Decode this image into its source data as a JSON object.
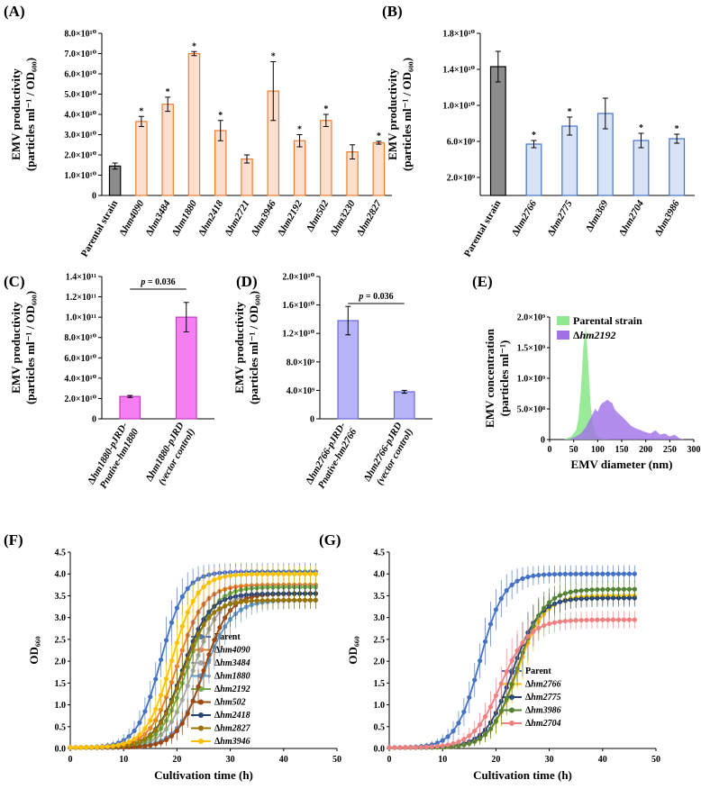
{
  "chart_data": [
    {
      "id": "A",
      "type": "bar",
      "panel_label": "(A)",
      "ylabel_line1": "EMV productivity",
      "ylabel_line2": "(particles ml⁻¹ / OD₆₀₀)",
      "ylim": [
        0,
        80000000000.0
      ],
      "yticks": [
        "0",
        "1.0×10¹⁰",
        "2.0×10¹⁰",
        "3.0×10¹⁰",
        "4.0×10¹⁰",
        "5.0×10¹⁰",
        "6.0×10¹⁰",
        "7.0×10¹⁰",
        "8.0×10¹⁰"
      ],
      "categories": [
        "Parental strain",
        "Δhm4090",
        "Δhm3484",
        "Δhm1880",
        "Δhm2418",
        "Δhm2721",
        "Δhm3946",
        "Δhm2192",
        "Δhm502",
        "Δhm3230",
        "Δhm2827"
      ],
      "values": [
        14500000000.0,
        36500000000.0,
        45000000000.0,
        70000000000.0,
        32000000000.0,
        18000000000.0,
        51500000000.0,
        27000000000.0,
        37000000000.0,
        21500000000.0,
        26000000000.0
      ],
      "errors": [
        1500000000.0,
        2500000000.0,
        3500000000.0,
        1000000000.0,
        5000000000.0,
        2000000000.0,
        14500000000.0,
        3000000000.0,
        3000000000.0,
        3500000000.0,
        700000000.0
      ],
      "significant": [
        false,
        true,
        true,
        true,
        true,
        false,
        true,
        true,
        true,
        false,
        true
      ],
      "star": "*"
    },
    {
      "id": "B",
      "type": "bar",
      "panel_label": "(B)",
      "ylabel_line1": "EMV productivity",
      "ylabel_line2": "(particles ml⁻¹ / OD₆₀₀)",
      "ylim": [
        0,
        18000000000.0
      ],
      "yticks": [
        "2.0×10⁹",
        "6.0×10⁹",
        "1.0×10¹⁰",
        "1.4×10¹⁰",
        "1.8×10¹⁰"
      ],
      "ytick_values": [
        2000000000.0,
        6000000000.0,
        10000000000.0,
        14000000000.0,
        18000000000.0
      ],
      "categories": [
        "Parental strain",
        "Δhm2766",
        "Δhm2775",
        "Δhm369",
        "Δhm2704",
        "Δhm3986"
      ],
      "values": [
        14300000000.0,
        5700000000.0,
        7700000000.0,
        9100000000.0,
        6100000000.0,
        6300000000.0
      ],
      "errors": [
        1700000000.0,
        400000000.0,
        1000000000.0,
        1700000000.0,
        800000000.0,
        500000000.0
      ],
      "significant": [
        false,
        true,
        true,
        false,
        true,
        true
      ],
      "star": "*"
    },
    {
      "id": "C",
      "type": "bar",
      "panel_label": "(C)",
      "ylabel_line1": "EMV productivity",
      "ylabel_line2": "(particles ml⁻¹ / OD₆₀₀)",
      "ylim": [
        0,
        140000000000.0
      ],
      "yticks": [
        "0",
        "2.0×10¹⁰",
        "4.0×10¹⁰",
        "6.0×10¹⁰",
        "8.0×10¹⁰",
        "1.0×10¹¹",
        "1.2×10¹¹",
        "1.4×10¹¹"
      ],
      "categories": [
        "Δhm1880-pJRD-Pnative-hm1880",
        "Δhm1880-pJRD (vector control)"
      ],
      "cat_lines": [
        [
          "Δhm1880-pJRD-",
          "Pnative-hm1880"
        ],
        [
          "Δhm1880-pJRD",
          "(vector control)"
        ]
      ],
      "values": [
        22000000000.0,
        100000000000.0
      ],
      "errors": [
        1000000000.0,
        14500000000.0
      ],
      "pvalue": "p = 0.036"
    },
    {
      "id": "D",
      "type": "bar",
      "panel_label": "(D)",
      "ylabel_line1": "EMV productivity",
      "ylabel_line2": "(particles ml⁻¹ / OD₆₀₀)",
      "ylim": [
        0,
        20000000000.0
      ],
      "yticks": [
        "0",
        "4.0×10⁹",
        "8.0×10⁹",
        "1.2×10¹⁰",
        "1.6×10¹⁰",
        "2.0×10¹⁰"
      ],
      "categories": [
        "Δhm2766-pJRD-Pnative-hm2766",
        "Δhm2766-pJRD (vector control)"
      ],
      "cat_lines": [
        [
          "Δhm2766-pJRD-",
          "Pnative-hm2766"
        ],
        [
          "Δhm2766-pJRD",
          "(vector control)"
        ]
      ],
      "values": [
        13800000000.0,
        3800000000.0
      ],
      "errors": [
        2000000000.0,
        200000000.0
      ],
      "pvalue": "p = 0.036"
    },
    {
      "id": "E",
      "type": "area",
      "panel_label": "(E)",
      "ylabel_line1": "EMV concentration",
      "ylabel_line2": "(particles ml⁻¹)",
      "xlabel": "EMV diameter (nm)",
      "xlim": [
        0,
        300
      ],
      "ylim": [
        0,
        2000000000.0
      ],
      "xticks": [
        "0",
        "50",
        "100",
        "150",
        "200",
        "250",
        "300"
      ],
      "yticks": [
        "0",
        "5.0×10⁸",
        "1.0×10⁹",
        "1.5×10⁹",
        "2.0×10⁹"
      ],
      "series": [
        {
          "name": "Parental strain",
          "color": "#8ee88e",
          "x": [
            30,
            45,
            55,
            60,
            65,
            70,
            75,
            80,
            85,
            90,
            95,
            100,
            110,
            120,
            130
          ],
          "y": [
            0,
            50000000.0,
            150000000.0,
            350000000.0,
            800000000.0,
            1500000000.0,
            1850000000.0,
            1300000000.0,
            600000000.0,
            250000000.0,
            100000000.0,
            50000000.0,
            20000000.0,
            10000000.0,
            0
          ]
        },
        {
          "name": "Δhm2192",
          "color": "#a070e8",
          "x": [
            40,
            55,
            65,
            75,
            85,
            95,
            100,
            105,
            110,
            115,
            120,
            125,
            130,
            135,
            140,
            150,
            160,
            170,
            180,
            190,
            200,
            210,
            220,
            230,
            240,
            250,
            260,
            270,
            280
          ],
          "y": [
            0,
            50000000.0,
            100000000.0,
            200000000.0,
            350000000.0,
            500000000.0,
            450000000.0,
            550000000.0,
            600000000.0,
            620000000.0,
            650000000.0,
            620000000.0,
            600000000.0,
            500000000.0,
            450000000.0,
            380000000.0,
            300000000.0,
            220000000.0,
            180000000.0,
            150000000.0,
            120000000.0,
            100000000.0,
            150000000.0,
            80000000.0,
            100000000.0,
            50000000.0,
            80000000.0,
            20000000.0,
            0
          ]
        }
      ]
    },
    {
      "id": "F",
      "type": "line",
      "panel_label": "(F)",
      "ylabel": "OD₆₆₀",
      "xlabel": "Cultivation time (h)",
      "xlim": [
        0,
        50
      ],
      "ylim": [
        0,
        4.5
      ],
      "xticks": [
        "0",
        "10",
        "20",
        "30",
        "40",
        "50"
      ],
      "yticks": [
        "0.0",
        "0.5",
        "1.0",
        "1.5",
        "2.0",
        "2.5",
        "3.0",
        "3.5",
        "4.0",
        "4.5"
      ],
      "series": [
        {
          "name": "Parent",
          "color": "#4472c4",
          "mid": 17,
          "k": 0.45,
          "max": 4.05
        },
        {
          "name": "Δhm4090",
          "color": "#ed7d31",
          "mid": 20,
          "k": 0.4,
          "max": 3.75
        },
        {
          "name": "Δhm3484",
          "color": "#a5a5a5",
          "mid": 23,
          "k": 0.4,
          "max": 3.55
        },
        {
          "name": "Δhm1880",
          "color": "#5b9bd5",
          "mid": 25,
          "k": 0.38,
          "max": 3.4
        },
        {
          "name": "Δhm2192",
          "color": "#70ad47",
          "mid": 22,
          "k": 0.4,
          "max": 3.7
        },
        {
          "name": "Δhm502",
          "color": "#9e480e",
          "mid": 25,
          "k": 0.42,
          "max": 3.55
        },
        {
          "name": "Δhm2418",
          "color": "#264478",
          "mid": 21,
          "k": 0.4,
          "max": 3.55
        },
        {
          "name": "Δhm2827",
          "color": "#997300",
          "mid": 21,
          "k": 0.4,
          "max": 3.4
        },
        {
          "name": "Δhm3946",
          "color": "#ffc000",
          "mid": 19,
          "k": 0.42,
          "max": 4.0
        }
      ]
    },
    {
      "id": "G",
      "type": "line",
      "panel_label": "(G)",
      "ylabel": "OD₆₆₀",
      "xlabel": "Cultivation time (h)",
      "xlim": [
        0,
        50
      ],
      "ylim": [
        0,
        4.5
      ],
      "xticks": [
        "0",
        "10",
        "20",
        "30",
        "40",
        "50"
      ],
      "yticks": [
        "0.0",
        "0.5",
        "1.0",
        "1.5",
        "2.0",
        "2.5",
        "3.0",
        "3.5",
        "4.0",
        "4.5"
      ],
      "series": [
        {
          "name": "Parent",
          "color": "#4472c4",
          "mid": 17,
          "k": 0.45,
          "max": 4.0
        },
        {
          "name": "Δhm2766",
          "color": "#ffc000",
          "mid": 24,
          "k": 0.4,
          "max": 3.5
        },
        {
          "name": "Δhm2775",
          "color": "#264478",
          "mid": 23,
          "k": 0.4,
          "max": 3.45
        },
        {
          "name": "Δhm3986",
          "color": "#548235",
          "mid": 24,
          "k": 0.4,
          "max": 3.65
        },
        {
          "name": "Δhm2704",
          "color": "#f08080",
          "mid": 21,
          "k": 0.38,
          "max": 2.95
        }
      ]
    }
  ]
}
